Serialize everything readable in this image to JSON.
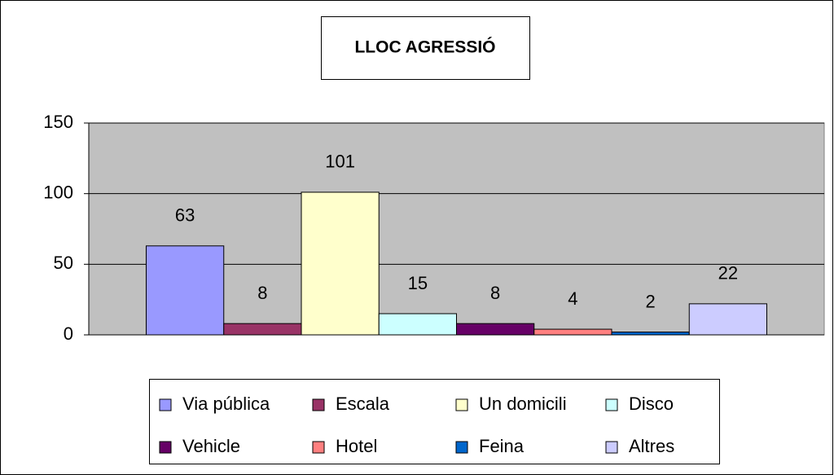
{
  "chart_data": {
    "type": "bar",
    "title": "LLOC AGRESSIÓ",
    "series": [
      {
        "name": "Via pública",
        "color": "#9999ff",
        "values": [
          63
        ]
      },
      {
        "name": "Escala",
        "color": "#993366",
        "values": [
          8
        ]
      },
      {
        "name": "Un domicili",
        "color": "#ffffcc",
        "values": [
          101
        ]
      },
      {
        "name": "Disco",
        "color": "#ccffff",
        "values": [
          15
        ]
      },
      {
        "name": "Vehicle",
        "color": "#660066",
        "values": [
          8
        ]
      },
      {
        "name": "Hotel",
        "color": "#ff8080",
        "values": [
          4
        ]
      },
      {
        "name": "Feina",
        "color": "#0066cc",
        "values": [
          2
        ]
      },
      {
        "name": "Altres",
        "color": "#ccccff",
        "values": [
          22
        ]
      }
    ],
    "ylim": [
      0,
      150
    ],
    "yticks": [
      0,
      50,
      100,
      150
    ],
    "grid": true,
    "legend": "bottom"
  }
}
